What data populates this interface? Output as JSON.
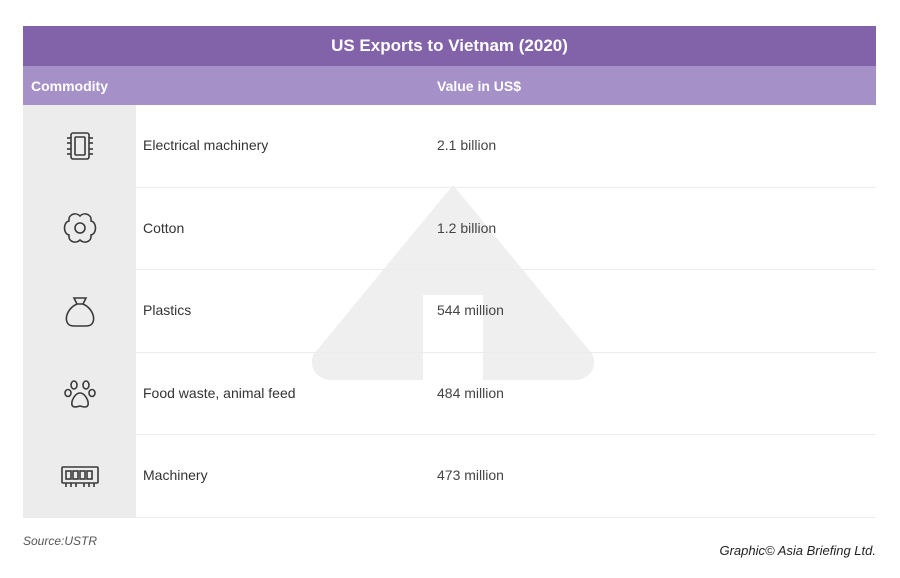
{
  "table": {
    "title": "US Exports to Vietnam (2020)",
    "header": {
      "commodity": "Commodity",
      "value": "Value in US$"
    },
    "rows": [
      {
        "icon": "chip-icon",
        "commodity": "Electrical machinery",
        "value": "2.1 billion"
      },
      {
        "icon": "flower-icon",
        "commodity": "Cotton",
        "value": "1.2 billion"
      },
      {
        "icon": "sack-icon",
        "commodity": "Plastics",
        "value": "544 million"
      },
      {
        "icon": "paw-icon",
        "commodity": "Food waste, animal feed",
        "value": "484 million"
      },
      {
        "icon": "memory-module-icon",
        "commodity": "Machinery",
        "value": "473 million"
      }
    ]
  },
  "footer": {
    "source": "Source:USTR",
    "credit": "Graphic© Asia Briefing Ltd."
  },
  "colors": {
    "title_bar": "#8262a8",
    "header_bar": "#a590c8",
    "icon_column": "#ececec"
  }
}
